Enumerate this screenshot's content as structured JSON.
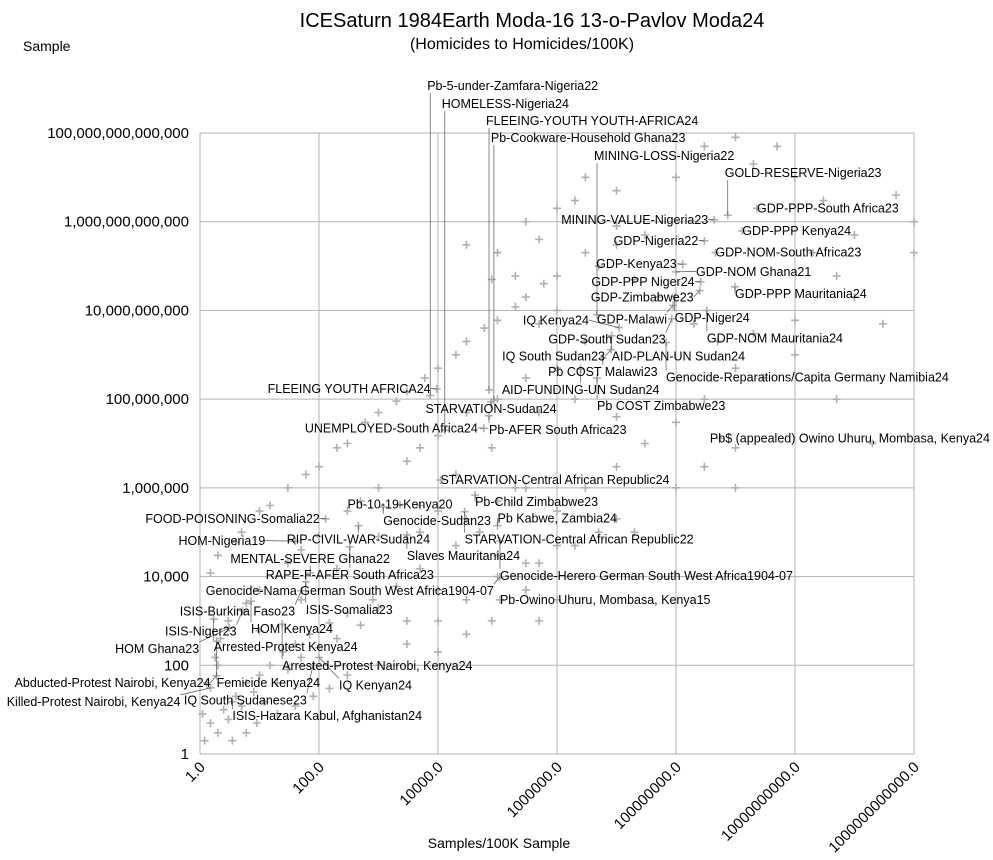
{
  "chart_data": {
    "type": "scatter",
    "title": "ICESaturn 1984Earth Moda-16 13-o-Pavlov Moda24",
    "subtitle": "(Homicides to Homicides/100K)",
    "xlabel": "Samples/100K Sample",
    "ylabel": "Sample",
    "xscale": "log",
    "yscale": "log",
    "xlim": [
      1,
      1000000000000.0
    ],
    "ylim": [
      1,
      100000000000000.0
    ],
    "grid": true,
    "legend": "none",
    "colors": {
      "points": "#b0b0b0",
      "grid": "#b3b3b3",
      "text": "#000000"
    },
    "x_ticks": [
      "1.0",
      "100.0",
      "10000.0",
      "1000000.0",
      "100000000.0",
      "10000000000.0",
      "1000000000000.0"
    ],
    "y_ticks": [
      "1",
      "100",
      "10,000",
      "1,000,000",
      "100,000,000",
      "10,000,000,000",
      "1,000,000,000,000",
      "100,000,000,000,000"
    ],
    "labeled_points": [
      {
        "label": "Pb-5-under-Zamfara-Nigeria22",
        "x": 7400.0,
        "y": 120000000.0
      },
      {
        "label": "HOMELESS-Nigeria24",
        "x": 13000.0,
        "y": 20000000.0
      },
      {
        "label": "FLEEING-YOUTH YOUTH-AFRICA24",
        "x": 72000.0,
        "y": 160000000.0
      },
      {
        "label": "Pb-Cookware-Household Ghana23",
        "x": 87000.0,
        "y": 95000000.0
      },
      {
        "label": "MINING-LOSS-Nigeria22",
        "x": 4700000.0,
        "y": 8000000000.0
      },
      {
        "label": "GOLD-RESERVE-Nigeria23",
        "x": 740000000.0,
        "y": 1400000000000.0
      },
      {
        "label": "GDP-PPP-South Africa23",
        "x": 2300000000.0,
        "y": 2000000000000.0
      },
      {
        "label": "MINING-VALUE-Nigeria23",
        "x": 440000000.0,
        "y": 1100000000000.0
      },
      {
        "label": "GDP-PPP Kenya24",
        "x": 1300000000.0,
        "y": 620000000000.0
      },
      {
        "label": "GDP-Nigeria22",
        "x": 300000000.0,
        "y": 370000000000.0
      },
      {
        "label": "GDP-NOM-South Africa23",
        "x": 460000000.0,
        "y": 200000000000.0
      },
      {
        "label": "GDP-Kenya23",
        "x": 130000000.0,
        "y": 110000000000.0
      },
      {
        "label": "GDP-NOM Ghana21",
        "x": 100000000.0,
        "y": 74000000000.0
      },
      {
        "label": "GDP-PPP Niger24",
        "x": 260000000.0,
        "y": 44000000000.0
      },
      {
        "label": "GDP-PPP Mauritania24",
        "x": 980000000.0,
        "y": 34000000000.0
      },
      {
        "label": "GDP-Zimbabwe23",
        "x": 250000000.0,
        "y": 28000000000.0
      },
      {
        "label": "GDP-Niger24",
        "x": 95000000.0,
        "y": 20000000000.0
      },
      {
        "label": "GDP-Malawi",
        "x": 89000000.0,
        "y": 13000000000.0
      },
      {
        "label": "GDP-NOM Mauritania24",
        "x": 330000000.0,
        "y": 10000000000.0
      },
      {
        "label": "GDP-South Sudan23",
        "x": 85000000.0,
        "y": 6500000000.0
      },
      {
        "label": "IQ Kenya24",
        "x": 11000000.0,
        "y": 4100000000.0
      },
      {
        "label": "AID-PLAN-UN Sudan24",
        "x": 8300000.0,
        "y": 2700000000.0
      },
      {
        "label": "Genocide-Reparations/Capita Germany Namibia24",
        "x": 68000000.0,
        "y": 1900000000.0
      },
      {
        "label": "IQ South Sudan23",
        "x": 8100000.0,
        "y": 1300000000.0
      },
      {
        "label": "Pb COST Malawi23",
        "x": 5900000.0,
        "y": 850000000.0
      },
      {
        "label": "AID-FUNDING-UN Sudan24",
        "x": 2500000.0,
        "y": 480000000.0
      },
      {
        "label": "Pb COST Zimbabwe23",
        "x": 4700000.0,
        "y": 300000000.0
      },
      {
        "label": "FLEEING YOUTH AFRICA24",
        "x": 9500.0,
        "y": 170000000.0
      },
      {
        "label": "STARVATION-Sudan24",
        "x": 78000.0,
        "y": 87000000.0
      },
      {
        "label": "Pb-AFER South Africa23",
        "x": 72000.0,
        "y": 42000000.0
      },
      {
        "label": "UNEMPLOYED-South Africa24",
        "x": 59000.0,
        "y": 22000000.0
      },
      {
        "label": "Pb$ (appealed) Owino Uhuru, Mombasa, Kenya24",
        "x": 550000000.0,
        "y": 13000000.0
      },
      {
        "label": "STARVATION-Central African Republic24",
        "x": 11000.0,
        "y": 1500000.0
      },
      {
        "label": "Pb-Child Zimbabwe23",
        "x": 42000.0,
        "y": 690000.0
      },
      {
        "label": "Pb-10-19-Kenya20",
        "x": 2300.0,
        "y": 420000.0
      },
      {
        "label": "Genocide-Sudan23",
        "x": 1200.0,
        "y": 370000.0
      },
      {
        "label": "STARVATION-Central African Republic22",
        "x": 28000.0,
        "y": 290000.0
      },
      {
        "label": "FOOD-POISONING-Somalia22",
        "x": 130.0,
        "y": 200000.0
      },
      {
        "label": "RIP-CIVIL-WAR-Sudan24",
        "x": 460.0,
        "y": 140000.0
      },
      {
        "label": "Pb Kabwe, Zambia24",
        "x": 100000.0,
        "y": 140000.0
      },
      {
        "label": "Slaves Mauritania24",
        "x": 3000.0,
        "y": 87000.0
      },
      {
        "label": "Genocide-Herero German South West Africa1904-07",
        "x": 110000.0,
        "y": 63000.0
      },
      {
        "label": "HOM-Nigeria19",
        "x": 40.0,
        "y": 63000.0
      },
      {
        "label": "RAPE-F-AFER South Africa23",
        "x": 330.0,
        "y": 47000.0
      },
      {
        "label": "MENTAL-SEVERE Ghana22",
        "x": 71.0,
        "y": 12000.0
      },
      {
        "label": "Genocide-Nama German South West Africa1904-07",
        "x": 110000.0,
        "y": 9800.0
      },
      {
        "label": "ISIS-Somalia23",
        "x": 60.0,
        "y": 7600.0
      },
      {
        "label": "ISIS-Burkina Faso23",
        "x": 50.0,
        "y": 4800.0
      },
      {
        "label": "Pb-Owino Uhuru, Mombasa, Kenya15",
        "x": 110000.0,
        "y": 3000.0
      },
      {
        "label": "HOM Kenya24",
        "x": 7.2,
        "y": 2800.0
      },
      {
        "label": "ISIS-Niger23",
        "x": 5.2,
        "y": 1700.0
      },
      {
        "label": "Arrested-Protest Kenya24",
        "x": 1.7,
        "y": 1100.0
      },
      {
        "label": "Arrested-Protest Nairobi, Kenya24",
        "x": 24.0,
        "y": 850.0
      },
      {
        "label": "HOM Ghana23",
        "x": 3.1,
        "y": 690.0
      },
      {
        "label": "Femicide Kenya24",
        "x": 1.9,
        "y": 350.0
      },
      {
        "label": "IQ Kenyan24",
        "x": 100.0,
        "y": 150.0
      },
      {
        "label": "IQ South Sudanese23",
        "x": 79.0,
        "y": 100.0
      },
      {
        "label": "Abducted-Protest Nairobi, Kenya24",
        "x": 1.9,
        "y": 58.0
      },
      {
        "label": "Killed-Protest Nairobi, Kenya24",
        "x": 1.5,
        "y": 31.0
      },
      {
        "label": "ISIS-Hazara Kabul, Afghanistan24",
        "x": 3.5,
        "y": 15.0
      }
    ],
    "points": [
      [
        2,
        30000.0
      ],
      [
        5,
        100000.0
      ],
      [
        10,
        300000.0
      ],
      [
        30,
        1000000.0
      ],
      [
        100,
        3000000.0
      ],
      [
        300,
        10000000.0
      ],
      [
        1000.0,
        50000000.0
      ],
      [
        3000.0,
        150000000.0
      ],
      [
        10000.0,
        500000000.0
      ],
      [
        30000.0,
        2000000000.0
      ],
      [
        100000.0,
        6000000000.0
      ],
      [
        300000.0,
        20000000000.0
      ],
      [
        1000000.0,
        60000000000.0
      ],
      [
        3000000.0,
        200000000000.0
      ],
      [
        10000000.0,
        800000000000.0
      ],
      [
        1.5,
        12000.0
      ],
      [
        4,
        60000.0
      ],
      [
        15,
        400000.0
      ],
      [
        60,
        2000000.0
      ],
      [
        200,
        8000000.0
      ],
      [
        600,
        30000000.0
      ],
      [
        2000.0,
        90000000.0
      ],
      [
        6000.0,
        300000000.0
      ],
      [
        20000.0,
        1000000000.0
      ],
      [
        60000.0,
        4000000000.0
      ],
      [
        200000.0,
        12000000000.0
      ],
      [
        600000.0,
        40000000000.0
      ],
      [
        3,
        1000.0
      ],
      [
        10,
        5000.0
      ],
      [
        30,
        20000.0
      ],
      [
        100,
        80000.0
      ],
      [
        300,
        300000.0
      ],
      [
        1000.0,
        1000000.0
      ],
      [
        3000.0,
        4000000.0
      ],
      [
        10000.0,
        15000000.0
      ],
      [
        30000.0,
        50000000.0
      ],
      [
        6,
        2500.0
      ],
      [
        50,
        40000.0
      ],
      [
        500,
        500000.0
      ],
      [
        5000.0,
        8000000.0
      ],
      [
        2,
        100
      ],
      [
        10,
        600
      ],
      [
        50,
        3000.0
      ],
      [
        200,
        15000.0
      ],
      [
        1000.0,
        80000.0
      ],
      [
        5000.0,
        400000.0
      ],
      [
        20000.0,
        2000000.0
      ],
      [
        80000.0,
        8000000.0
      ],
      [
        1.2,
        2
      ],
      [
        1.5,
        5
      ],
      [
        2,
        3
      ],
      [
        2.5,
        10
      ],
      [
        3,
        6
      ],
      [
        4,
        20
      ],
      [
        5,
        12
      ],
      [
        6,
        40
      ],
      [
        8,
        25
      ],
      [
        10,
        60
      ],
      [
        12,
        15
      ],
      [
        15,
        100
      ],
      [
        20,
        40
      ],
      [
        25,
        200
      ],
      [
        30,
        80
      ],
      [
        40,
        300
      ],
      [
        50,
        150
      ],
      [
        70,
        500
      ],
      [
        100,
        250
      ],
      [
        150,
        900
      ],
      [
        200,
        400
      ],
      [
        300,
        1500
      ],
      [
        500,
        800
      ],
      [
        800,
        3000
      ],
      [
        1000.0,
        2000.0
      ],
      [
        2000.0,
        6000.0
      ],
      [
        3000.0,
        1000.0
      ],
      [
        5000.0,
        15000.0
      ],
      [
        10000.0,
        5000.0
      ],
      [
        1.3,
        40
      ],
      [
        1.8,
        150
      ],
      [
        2.2,
        400
      ],
      [
        1.1,
        8
      ],
      [
        3.5,
        2
      ],
      [
        6,
        3
      ],
      [
        9,
        5
      ],
      [
        20,
        8
      ],
      [
        40,
        12
      ],
      [
        80,
        20
      ],
      [
        150,
        30
      ],
      [
        300,
        60
      ],
      [
        1000.0,
        100
      ],
      [
        3000.0,
        300
      ],
      [
        10000.0,
        1000.0
      ],
      [
        30000.0,
        3000.0
      ],
      [
        100000.0,
        10000.0
      ],
      [
        300000.0,
        20000.0
      ],
      [
        1000000.0,
        50000.0
      ],
      [
        10000000.0,
        200000.0
      ],
      [
        100000000.0,
        1000000.0
      ],
      [
        300000000.0,
        3000000.0
      ],
      [
        1000000000.0,
        8000000.0
      ],
      [
        20000000.0,
        100000.0
      ],
      [
        100000000.0,
        10000000000000.0
      ],
      [
        300000000.0,
        50000000000000.0
      ],
      [
        1000000000.0,
        80000000000000.0
      ],
      [
        2000000000.0,
        20000000000000.0
      ],
      [
        5000000000.0,
        50000000000000.0
      ],
      [
        10000000000.0,
        10000000000000.0
      ],
      [
        30000000000.0,
        3000000000000.0
      ],
      [
        100000000000.0,
        500000000000.0
      ],
      [
        500000000000.0,
        4000000000000.0
      ],
      [
        1000000000000.0,
        1000000000000.0
      ],
      [
        20000000000.0,
        200000000000.0
      ],
      [
        50000000000.0,
        60000000000.0
      ],
      [
        100000000000.0,
        20000000000.0
      ],
      [
        300000000000.0,
        5000000000.0
      ],
      [
        10000000000.0,
        1000000000.0
      ],
      [
        3000000000.0,
        300000000.0
      ],
      [
        50000000000.0,
        100000000.0
      ],
      [
        200000000000.0,
        10000000.0
      ],
      [
        1000000000000.0,
        200000000000.0
      ],
      [
        30000000.0,
        500000000000.0
      ],
      [
        10000000.0,
        300000000000.0
      ],
      [
        5000000.0,
        100000000000.0
      ],
      [
        20000000.0,
        50000000000.0
      ],
      [
        50000000.0,
        20000000000.0
      ],
      [
        200000000.0,
        5000000000.0
      ],
      [
        500000000.0,
        2000000000.0
      ],
      [
        1000000000.0,
        500000000.0
      ],
      [
        1000000.0,
        10000000000.0
      ],
      [
        500000.0,
        5000000000.0
      ],
      [
        3000000.0,
        2000000000.0
      ],
      [
        1000000.0,
        500000000.0
      ],
      [
        300000.0,
        300000000.0
      ],
      [
        100000.0,
        100000000.0
      ],
      [
        500000.0,
        50000000.0
      ],
      [
        2000000.0,
        100000000.0
      ],
      [
        10000000.0,
        40000000.0
      ],
      [
        30000000.0,
        10000000.0
      ],
      [
        100000000.0,
        30000000.0
      ],
      [
        300000000.0,
        100000000.0
      ],
      [
        2000000000.0,
        3000000000.0
      ],
      [
        10000000000.0,
        6000000000.0
      ],
      [
        3000000.0,
        10000000000000.0
      ],
      [
        10000000.0,
        5000000000000.0
      ],
      [
        2000000.0,
        3000000000000.0
      ],
      [
        300000.0,
        1000000000000.0
      ],
      [
        500000.0,
        400000000000.0
      ],
      [
        1000000.0,
        2000000000000.0
      ],
      [
        100000.0,
        200000000000.0
      ],
      [
        30000.0,
        300000000000.0
      ],
      [
        200000.0,
        60000000000.0
      ],
      [
        80000.0,
        50000000000.0
      ],
      [
        1000000.0,
        300000.0
      ],
      [
        3000000.0,
        1000000.0
      ],
      [
        10000000.0,
        3000000.0
      ],
      [
        300000.0,
        1000000.0
      ],
      [
        100000.0,
        500000.0
      ],
      [
        30000.0,
        200000.0
      ],
      [
        10000.0,
        300000.0
      ],
      [
        5000.0,
        100000.0
      ],
      [
        20000.0,
        50000.0
      ],
      [
        50000.0,
        100000.0
      ],
      [
        200000.0,
        1000000.0
      ],
      [
        1000000000.0,
        1000000.0
      ],
      [
        500000.0,
        20000.0
      ],
      [
        2000000.0,
        50000.0
      ],
      [
        5000000.0,
        100000.0
      ],
      [
        300000.0,
        5000.0
      ],
      [
        100000.0,
        30000.0
      ],
      [
        80000.0,
        1000.0
      ],
      [
        30000.0,
        500
      ],
      [
        10000.0,
        200
      ],
      [
        500000.0,
        1000.0
      ],
      [
        1000000.0,
        3000.0
      ]
    ]
  }
}
